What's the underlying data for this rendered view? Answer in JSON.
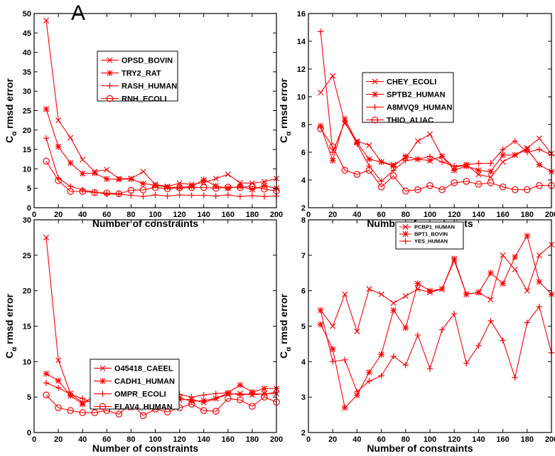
{
  "panel_letter": "A",
  "colors": {
    "series": "#ff0000",
    "axis": "#000000",
    "background": "#ffffff"
  },
  "chart_data": [
    {
      "type": "line",
      "title": "",
      "xlabel": "Number of constraints",
      "ylabel_main": "C",
      "ylabel_sub": "α",
      "ylabel_rest": " rmsd error",
      "xlim": [
        0,
        200
      ],
      "ylim": [
        0,
        50
      ],
      "xticks": [
        0,
        20,
        40,
        60,
        80,
        100,
        120,
        140,
        160,
        180,
        200
      ],
      "yticks": [
        0,
        5,
        10,
        15,
        20,
        25,
        30,
        35,
        40,
        45,
        50
      ],
      "grid": false,
      "legend_position": "upper-center",
      "x": [
        10,
        20,
        30,
        40,
        50,
        60,
        70,
        80,
        90,
        100,
        110,
        120,
        130,
        140,
        150,
        160,
        170,
        180,
        190,
        200
      ],
      "series": [
        {
          "name": "OPSD_BOVIN",
          "marker": "x",
          "values": [
            48.2,
            22.5,
            18.0,
            12.4,
            9.3,
            9.8,
            7.5,
            7.5,
            9.3,
            6.0,
            5.5,
            6.3,
            6.0,
            6.5,
            7.5,
            8.6,
            6.4,
            6.3,
            6.7,
            7.5
          ]
        },
        {
          "name": "TRY2_RAT",
          "marker": "star",
          "values": [
            25.4,
            15.7,
            11.5,
            8.8,
            8.9,
            7.4,
            7.3,
            7.4,
            6.2,
            5.8,
            5.3,
            5.2,
            5.5,
            7.2,
            5.6,
            5.0,
            5.5,
            4.7,
            5.7,
            5.0
          ]
        },
        {
          "name": "RASH_HUMAN",
          "marker": "plus",
          "values": [
            17.9,
            7.6,
            5.5,
            4.6,
            4.0,
            3.5,
            3.5,
            3.2,
            2.9,
            3.3,
            3.0,
            3.3,
            3.2,
            3.2,
            3.0,
            3.3,
            2.9,
            3.1,
            2.9,
            3.0
          ]
        },
        {
          "name": "RNH_ECOLI",
          "marker": "circle",
          "values": [
            12.0,
            7.0,
            4.2,
            4.2,
            3.9,
            3.8,
            3.6,
            4.5,
            4.6,
            5.2,
            4.9,
            5.1,
            5.2,
            5.2,
            5.0,
            5.3,
            5.2,
            5.5,
            4.8,
            4.3
          ]
        }
      ]
    },
    {
      "type": "line",
      "title": "",
      "xlabel": "Number of constraints",
      "ylabel_main": "C",
      "ylabel_sub": "α",
      "ylabel_rest": " rmsd error",
      "xlim": [
        0,
        200
      ],
      "ylim": [
        2,
        16
      ],
      "xticks": [
        0,
        20,
        40,
        60,
        80,
        100,
        120,
        140,
        160,
        180,
        200
      ],
      "yticks": [
        2,
        4,
        6,
        8,
        10,
        12,
        14,
        16
      ],
      "grid": false,
      "legend_position": "upper-center",
      "x": [
        10,
        20,
        30,
        40,
        50,
        60,
        70,
        80,
        90,
        100,
        110,
        120,
        130,
        140,
        150,
        160,
        170,
        180,
        190,
        200
      ],
      "series": [
        {
          "name": "CHEY_ECOLI",
          "marker": "x",
          "values": [
            10.3,
            11.5,
            8.1,
            6.8,
            6.5,
            5.3,
            5.1,
            5.6,
            6.8,
            7.3,
            5.7,
            4.9,
            5.1,
            4.4,
            4.2,
            5.3,
            5.8,
            6.3,
            7.0,
            5.9
          ]
        },
        {
          "name": "SPTB2_HUMAN",
          "marker": "star",
          "values": [
            7.9,
            5.4,
            8.4,
            6.7,
            5.5,
            5.3,
            5.0,
            5.7,
            5.5,
            5.4,
            5.7,
            4.7,
            5.0,
            4.7,
            4.6,
            5.8,
            5.8,
            6.2,
            5.1,
            4.6
          ]
        },
        {
          "name": "A8MVQ9_HUMAN",
          "marker": "plus",
          "values": [
            14.7,
            6.0,
            8.2,
            6.6,
            5.0,
            3.9,
            4.7,
            5.4,
            5.5,
            5.7,
            5.3,
            5.0,
            5.1,
            5.2,
            5.2,
            6.2,
            6.8,
            6.0,
            6.2,
            5.8
          ]
        },
        {
          "name": "THIO_ALIAC",
          "marker": "circle",
          "values": [
            7.7,
            6.4,
            4.7,
            4.4,
            4.7,
            3.5,
            4.3,
            3.2,
            3.3,
            3.6,
            3.3,
            3.8,
            3.9,
            3.7,
            3.8,
            3.5,
            3.3,
            3.3,
            3.6,
            3.6
          ]
        }
      ]
    },
    {
      "type": "line",
      "title": "",
      "xlabel": "Number of constraints",
      "ylabel_main": "C",
      "ylabel_sub": "α",
      "ylabel_rest": " rmsd error",
      "xlim": [
        0,
        200
      ],
      "ylim": [
        0,
        30
      ],
      "xticks": [
        0,
        20,
        40,
        60,
        80,
        100,
        120,
        140,
        160,
        180,
        200
      ],
      "yticks": [
        0,
        5,
        10,
        15,
        20,
        25,
        30
      ],
      "grid": false,
      "legend_position": "center",
      "x": [
        10,
        20,
        30,
        40,
        50,
        60,
        70,
        80,
        90,
        100,
        110,
        120,
        130,
        140,
        150,
        160,
        170,
        180,
        190,
        200
      ],
      "series": [
        {
          "name": "O45418_CAEEL",
          "marker": "x",
          "values": [
            27.5,
            10.2,
            5.5,
            4.2,
            4.6,
            4.4,
            4.0,
            4.0,
            5.0,
            4.4,
            4.8,
            4.6,
            4.7,
            4.2,
            4.8,
            5.4,
            5.5,
            5.3,
            5.5,
            5.5
          ]
        },
        {
          "name": "CADH1_HUMAN",
          "marker": "star",
          "values": [
            8.3,
            7.3,
            5.2,
            4.0,
            5.3,
            4.4,
            3.7,
            3.5,
            5.3,
            4.8,
            4.5,
            4.9,
            4.4,
            4.5,
            4.8,
            5.6,
            6.7,
            5.7,
            6.2,
            6.2
          ]
        },
        {
          "name": "OMPR_ECOLI",
          "marker": "plus",
          "values": [
            7.0,
            6.3,
            5.4,
            4.8,
            4.0,
            3.8,
            3.6,
            4.0,
            6.1,
            4.9,
            5.5,
            5.4,
            5.0,
            5.3,
            5.5,
            5.6,
            5.3,
            5.5,
            5.4,
            5.7
          ]
        },
        {
          "name": "ELAV4_HUMAN",
          "marker": "circle",
          "values": [
            5.3,
            3.5,
            3.1,
            2.8,
            2.8,
            3.1,
            2.6,
            4.1,
            2.4,
            3.3,
            2.9,
            3.5,
            4.0,
            3.1,
            3.0,
            4.8,
            4.6,
            3.7,
            5.0,
            4.3
          ]
        }
      ]
    },
    {
      "type": "line",
      "title": "",
      "xlabel": "Number of constraints",
      "ylabel_main": "C",
      "ylabel_sub": "α",
      "ylabel_rest": " rmsd error",
      "xlim": [
        0,
        200
      ],
      "ylim": [
        2,
        8
      ],
      "xticks": [
        0,
        20,
        40,
        60,
        80,
        100,
        120,
        140,
        160,
        180,
        200
      ],
      "yticks": [
        2,
        3,
        4,
        5,
        6,
        7,
        8
      ],
      "grid": false,
      "legend_position": "top-center",
      "x": [
        10,
        20,
        30,
        40,
        50,
        60,
        70,
        80,
        90,
        100,
        110,
        120,
        130,
        140,
        150,
        160,
        170,
        180,
        190,
        200
      ],
      "series": [
        {
          "name": "PCBP1_HUMAN",
          "marker": "x",
          "values": [
            5.45,
            5.0,
            5.9,
            4.85,
            6.05,
            5.9,
            5.65,
            5.85,
            6.05,
            5.95,
            6.05,
            6.85,
            5.9,
            5.95,
            5.75,
            7.0,
            6.6,
            6.0,
            7.0,
            7.3
          ]
        },
        {
          "name": "BPT1_BOVIN",
          "marker": "star",
          "values": [
            5.05,
            4.35,
            2.7,
            3.05,
            3.7,
            4.2,
            5.45,
            4.95,
            6.2,
            6.0,
            6.05,
            6.9,
            5.9,
            5.95,
            6.5,
            6.2,
            6.95,
            7.55,
            6.25,
            5.9
          ]
        },
        {
          "name": "YES_HUMAN",
          "marker": "plus",
          "values": [
            5.45,
            4.0,
            4.05,
            3.15,
            3.45,
            3.6,
            4.15,
            3.9,
            4.75,
            3.8,
            4.9,
            5.35,
            3.95,
            4.45,
            5.15,
            4.6,
            3.55,
            5.1,
            5.55,
            4.25
          ]
        }
      ]
    }
  ]
}
